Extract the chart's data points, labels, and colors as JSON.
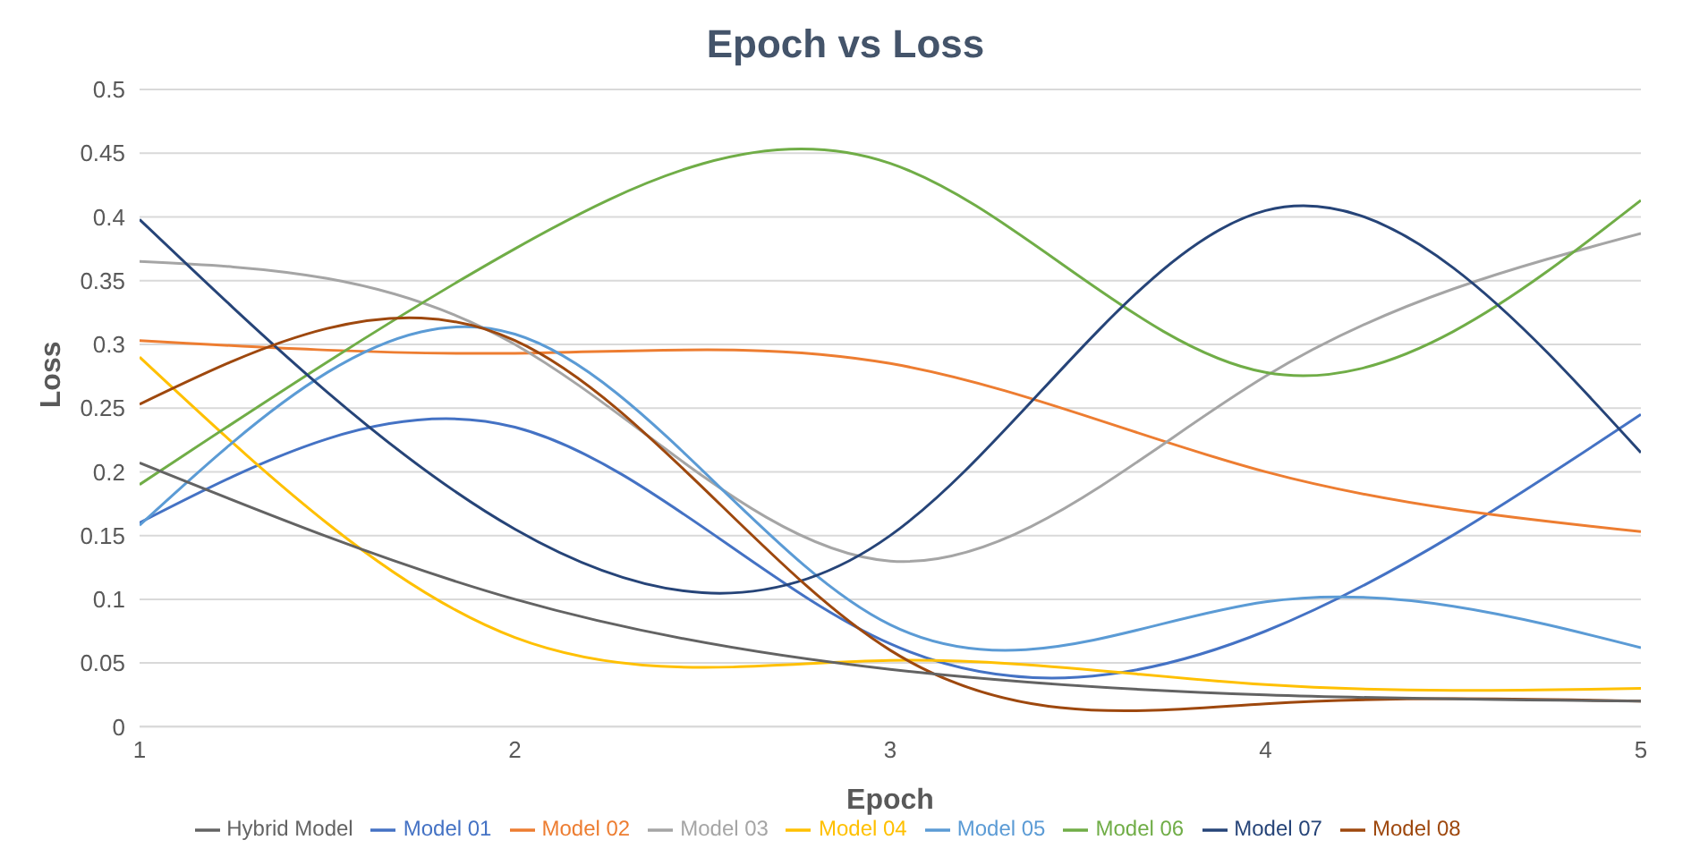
{
  "chart_data": {
    "type": "line",
    "title": "Epoch vs Loss",
    "xlabel": "Epoch",
    "ylabel": "Loss",
    "x": [
      1,
      2,
      3,
      4,
      5
    ],
    "xlim": [
      1,
      5
    ],
    "xticks": [
      1,
      2,
      3,
      4,
      5
    ],
    "ylim": [
      0,
      0.5
    ],
    "yticks": [
      0,
      0.05,
      0.1,
      0.15,
      0.2,
      0.25,
      0.3,
      0.35,
      0.4,
      0.45,
      0.5
    ],
    "grid": "y",
    "legend": "bottom",
    "marker": "none",
    "line_style": "solid",
    "series": [
      {
        "name": "Model 01",
        "color": "#4472c4",
        "values": [
          0.16,
          0.235,
          0.065,
          0.075,
          0.245
        ]
      },
      {
        "name": "Model 02",
        "color": "#ed7d31",
        "values": [
          0.303,
          0.293,
          0.285,
          0.2,
          0.153
        ]
      },
      {
        "name": "Model 03",
        "color": "#a5a5a5",
        "values": [
          0.365,
          0.3,
          0.13,
          0.275,
          0.387
        ]
      },
      {
        "name": "Model 04",
        "color": "#ffc000",
        "values": [
          0.29,
          0.07,
          0.052,
          0.033,
          0.03
        ]
      },
      {
        "name": "Model 05",
        "color": "#5b9bd5",
        "values": [
          0.158,
          0.308,
          0.08,
          0.098,
          0.062
        ]
      },
      {
        "name": "Model 06",
        "color": "#70ad47",
        "values": [
          0.19,
          0.375,
          0.442,
          0.278,
          0.413
        ]
      },
      {
        "name": "Model 07",
        "color": "#264478",
        "values": [
          0.398,
          0.155,
          0.15,
          0.405,
          0.215
        ]
      },
      {
        "name": "Model 08",
        "color": "#9e480e",
        "values": [
          0.253,
          0.303,
          0.06,
          0.018,
          0.02
        ]
      },
      {
        "name": "Hybrid Model",
        "color": "#636363",
        "values": [
          0.207,
          0.1,
          0.045,
          0.025,
          0.02
        ]
      }
    ]
  }
}
